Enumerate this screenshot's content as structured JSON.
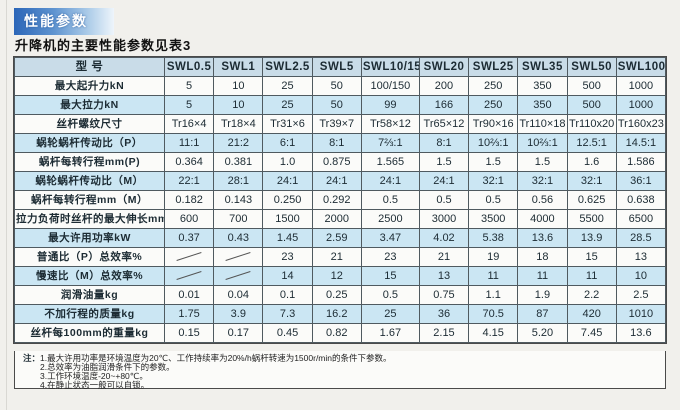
{
  "page": {
    "badge_label": "性能参数",
    "subtitle": "升降机的主要性能参数见表3"
  },
  "colors": {
    "badge_gradient_start": "#2b66b8",
    "badge_gradient_end": "#eef5fb",
    "header_row_bg": "#c9dce8",
    "shaded_row_bg": "#cbe6f3",
    "plain_row_bg": "#fbfbf9",
    "grid_border": "#4a4a4a",
    "page_bg": "#f1f0ec"
  },
  "table": {
    "header": [
      "型  号",
      "SWL0.5",
      "SWL1",
      "SWL2.5",
      "SWL5",
      "SWL10/15",
      "SWL20",
      "SWL25",
      "SWL35",
      "SWL50",
      "SWL100"
    ],
    "rows": [
      {
        "label": "最大起升力kN",
        "shaded": false,
        "values": [
          "5",
          "10",
          "25",
          "50",
          "100/150",
          "200",
          "250",
          "350",
          "500",
          "1000"
        ]
      },
      {
        "label": "最大拉力kN",
        "shaded": true,
        "values": [
          "5",
          "10",
          "25",
          "50",
          "99",
          "166",
          "250",
          "350",
          "500",
          "1000"
        ]
      },
      {
        "label": "丝杆螺纹尺寸",
        "shaded": false,
        "values": [
          "Tr16×4",
          "Tr18×4",
          "Tr31×6",
          "Tr39×7",
          "Tr58×12",
          "Tr65×12",
          "Tr90×16",
          "Tr110×18",
          "Tr110x20",
          "Tr160x23"
        ]
      },
      {
        "label": "蜗轮蜗杆传动比（P）",
        "shaded": true,
        "values": [
          "11:1",
          "21:2",
          "6:1",
          "8:1",
          "7⅔:1",
          "8:1",
          "10⅔:1",
          "10⅔:1",
          "12.5:1",
          "14.5:1"
        ]
      },
      {
        "label": "蜗杆每转行程mm(P)",
        "shaded": false,
        "values": [
          "0.364",
          "0.381",
          "1.0",
          "0.875",
          "1.565",
          "1.5",
          "1.5",
          "1.5",
          "1.6",
          "1.586"
        ]
      },
      {
        "label": "蜗轮蜗杆传动比（M）",
        "shaded": true,
        "values": [
          "22:1",
          "28:1",
          "24:1",
          "24:1",
          "24:1",
          "24:1",
          "32:1",
          "32:1",
          "32:1",
          "36:1"
        ]
      },
      {
        "label": "蜗杆每转行程mm（M）",
        "shaded": false,
        "values": [
          "0.182",
          "0.143",
          "0.250",
          "0.292",
          "0.5",
          "0.5",
          "0.5",
          "0.56",
          "0.625",
          "0.638"
        ]
      },
      {
        "label": "拉力负荷时丝杆的最大伸长mm",
        "shaded": false,
        "values": [
          "600",
          "700",
          "1500",
          "2000",
          "2500",
          "3000",
          "3500",
          "4000",
          "5500",
          "6500"
        ]
      },
      {
        "label": "最大许用功率kW",
        "shaded": true,
        "values": [
          "0.37",
          "0.43",
          "1.45",
          "2.59",
          "3.47",
          "4.02",
          "5.38",
          "13.6",
          "13.9",
          "28.5"
        ]
      },
      {
        "label": "普通比（P）总效率%",
        "shaded": false,
        "values": [
          "/",
          "/",
          "23",
          "21",
          "23",
          "21",
          "19",
          "18",
          "15",
          "13"
        ]
      },
      {
        "label": "慢速比（M）总效率%",
        "shaded": true,
        "values": [
          "/",
          "/",
          "14",
          "12",
          "15",
          "13",
          "11",
          "11",
          "11",
          "10"
        ]
      },
      {
        "label": "润滑油量kg",
        "shaded": false,
        "values": [
          "0.01",
          "0.04",
          "0.1",
          "0.25",
          "0.5",
          "0.75",
          "1.1",
          "1.9",
          "2.2",
          "2.5"
        ]
      },
      {
        "label": "不加行程的质量kg",
        "shaded": true,
        "values": [
          "1.75",
          "3.9",
          "7.3",
          "16.2",
          "25",
          "36",
          "70.5",
          "87",
          "420",
          "1010"
        ]
      },
      {
        "label": "丝杆每100mm的重量kg",
        "shaded": false,
        "values": [
          "0.15",
          "0.17",
          "0.45",
          "0.82",
          "1.67",
          "2.15",
          "4.15",
          "5.20",
          "7.45",
          "13.6"
        ]
      }
    ]
  },
  "notes": {
    "prefix": "注：",
    "items": [
      "1.最大许用功率是环境温度为20℃、工作持续率为20%/h蜗杆转速为1500r/min的条件下参数。",
      "2.总效率为油脂润滑条件下的参数。",
      "3.工作环境温度-20~+80℃。",
      "4.在静止状态一般可以自锁。"
    ]
  }
}
